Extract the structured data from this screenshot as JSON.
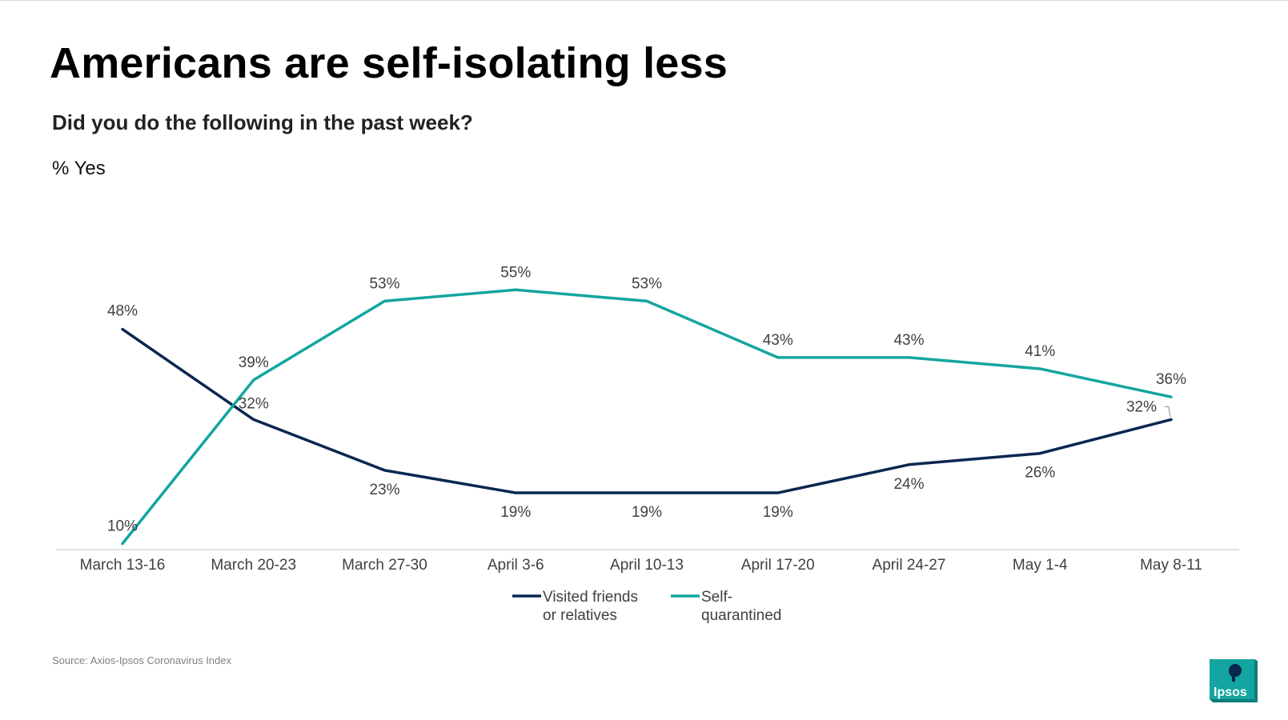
{
  "title": "Americans are self-isolating less",
  "subtitle": "Did you do the following in the past week?",
  "unit_label": "% Yes",
  "source": "Source: Axios-Ipsos Coronavirus Index",
  "logo_text": "Ipsos",
  "colors": {
    "navy": "#0a2750",
    "teal": "#14a5a0",
    "axis": "#d9d9d9",
    "text": "#404040"
  },
  "chart_data": {
    "type": "line",
    "categories": [
      "March 13-16",
      "March 20-23",
      "March 27-30",
      "April 3-6",
      "April 10-13",
      "April 17-20",
      "April 24-27",
      "May 1-4",
      "May 8-11"
    ],
    "series": [
      {
        "name": "Visited friends or relatives",
        "legend_lines": [
          "Visited friends",
          "or relatives"
        ],
        "color": "#0a2750",
        "values": [
          48,
          32,
          23,
          19,
          19,
          19,
          24,
          26,
          32
        ],
        "labels": [
          "48%",
          "32%",
          "23%",
          "19%",
          "19%",
          "19%",
          "24%",
          "26%",
          "32%"
        ]
      },
      {
        "name": "Self-quarantined",
        "legend_lines": [
          "Self-",
          "quarantined"
        ],
        "color": "#14a5a0",
        "values": [
          10,
          39,
          53,
          55,
          53,
          43,
          43,
          41,
          36
        ],
        "labels": [
          "10%",
          "39%",
          "53%",
          "55%",
          "53%",
          "43%",
          "43%",
          "41%",
          "36%"
        ]
      }
    ],
    "ylim": [
      0,
      70
    ],
    "grid": false,
    "legend_position": "bottom"
  }
}
